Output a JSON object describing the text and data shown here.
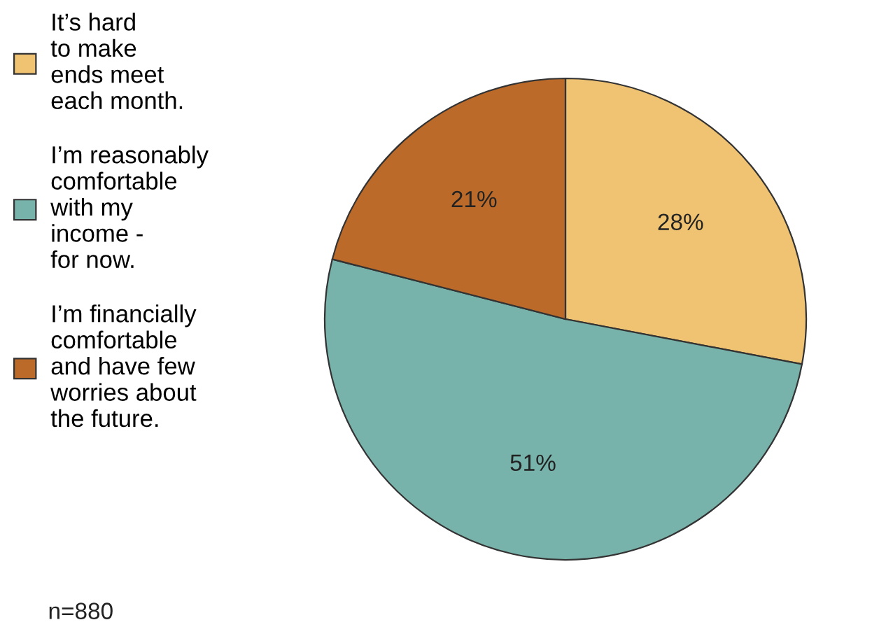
{
  "chart_data": {
    "type": "pie",
    "categories": [
      "It’s hard\nto make\nends meet\neach month.",
      "I’m reasonably\ncomfortable\nwith my\nincome -\nfor now.",
      "I’m financially\ncomfortable\nand have few\nworries about\nthe future."
    ],
    "values": [
      28,
      51,
      21
    ],
    "colors": [
      "#f0c373",
      "#77b3aa",
      "#bb6a2a"
    ],
    "value_labels": [
      "28%",
      "51%",
      "21%"
    ],
    "legend": "left",
    "annotations": [
      "n=880"
    ]
  }
}
